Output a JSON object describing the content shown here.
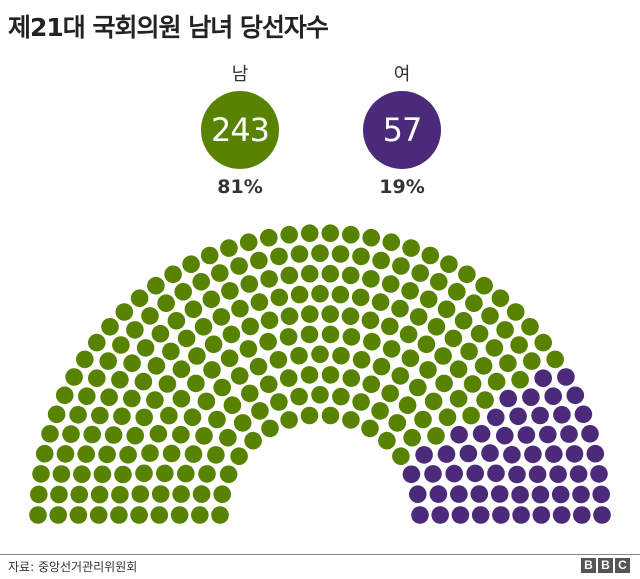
{
  "title": "제21대 국회의원 남녀 당선자수",
  "chart_data": {
    "type": "parliament",
    "total_seats": 300,
    "series": [
      {
        "name": "남",
        "value": 243,
        "percent": "81%",
        "color": "#578300"
      },
      {
        "name": "여",
        "value": 57,
        "percent": "19%",
        "color": "#4b2a7a"
      }
    ],
    "rows": 10
  },
  "footer": {
    "source": "자료: 중앙선거관리위원회",
    "logo": [
      "B",
      "B",
      "C"
    ]
  }
}
